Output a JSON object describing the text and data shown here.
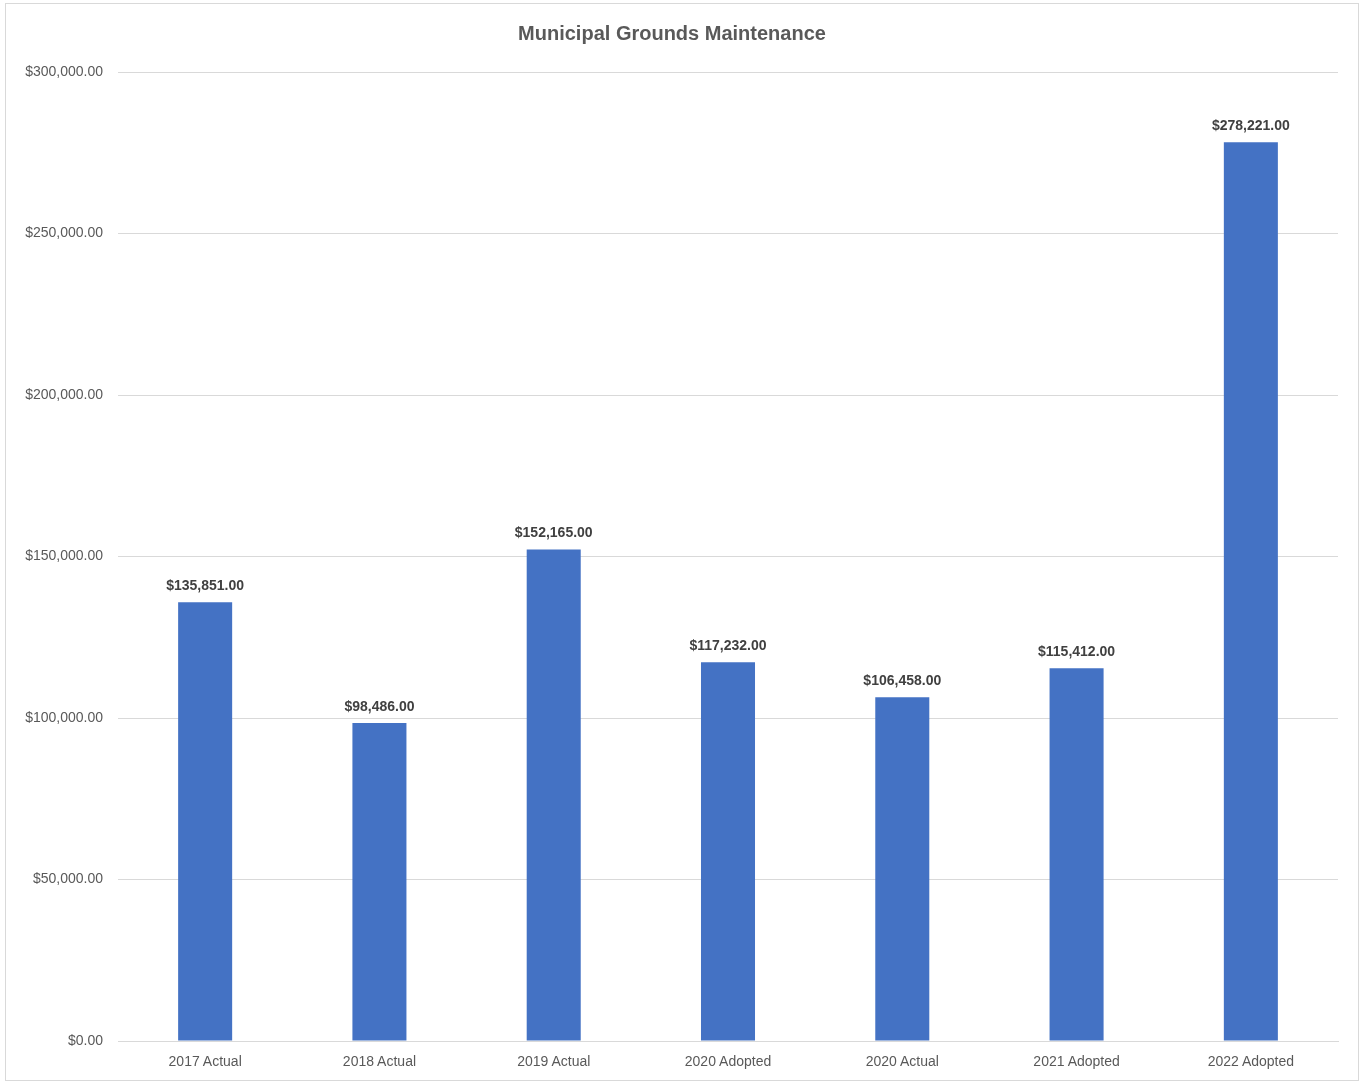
{
  "chart_data": {
    "type": "bar",
    "title": "Municipal Grounds Maintenance",
    "categories": [
      "2017 Actual",
      "2018 Actual",
      "2019 Actual",
      "2020 Adopted",
      "2020 Actual",
      "2021 Adopted",
      "2022 Adopted"
    ],
    "values": [
      135851,
      98486,
      152165,
      117232,
      106458,
      115412,
      278221
    ],
    "value_labels": [
      "$135,851.00",
      "$98,486.00",
      "$152,165.00",
      "$117,232.00",
      "$106,458.00",
      "$115,412.00",
      "$278,221.00"
    ],
    "color": "#4472c4",
    "ylim": [
      0,
      300000
    ],
    "yticks": [
      {
        "value": 0,
        "label": "$0.00"
      },
      {
        "value": 50000,
        "label": "$50,000.00"
      },
      {
        "value": 100000,
        "label": "$100,000.00"
      },
      {
        "value": 150000,
        "label": "$150,000.00"
      },
      {
        "value": 200000,
        "label": "$200,000.00"
      },
      {
        "value": 250000,
        "label": "$250,000.00"
      },
      {
        "value": 300000,
        "label": "$300,000.00"
      }
    ],
    "grid": "y"
  }
}
